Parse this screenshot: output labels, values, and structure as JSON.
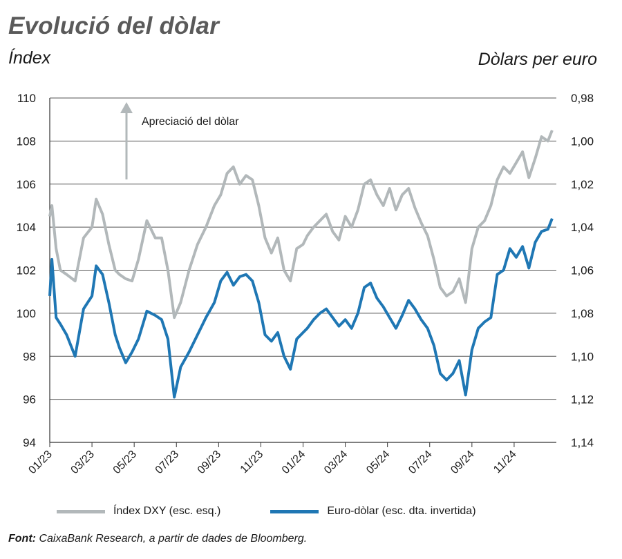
{
  "title": "Evolució del dòlar",
  "left_axis_label": "Índex",
  "right_axis_label": "Dòlars per euro",
  "annotation": "Apreciació del dòlar",
  "source_label": "Font:",
  "source_text": "CaixaBank Research, a partir de dades de Bloomberg.",
  "colors": {
    "dxy": "#b2b8ba",
    "eurusd": "#1f77b4",
    "grid": "#555555"
  },
  "chart_data": {
    "type": "line",
    "x_ticks": [
      "01/23",
      "03/23",
      "05/23",
      "07/23",
      "09/23",
      "11/23",
      "01/24",
      "03/24",
      "05/24",
      "07/24",
      "09/24",
      "11/24"
    ],
    "ylim_left": [
      94,
      110
    ],
    "left_ticks": [
      "94",
      "96",
      "98",
      "100",
      "102",
      "104",
      "106",
      "108",
      "110"
    ],
    "ylim_right": [
      0.98,
      1.14
    ],
    "right_axis_inverted": true,
    "right_ticks": [
      "0,98",
      "1,00",
      "1,02",
      "1,04",
      "1,06",
      "1,08",
      "1,10",
      "1,12",
      "1,14"
    ],
    "x_range_months": [
      0,
      24
    ],
    "series": [
      {
        "name": "Índex DXY (esc. esq.)",
        "axis": "left",
        "x": [
          0,
          0.1,
          0.3,
          0.5,
          0.8,
          1.2,
          1.6,
          2.0,
          2.2,
          2.5,
          2.8,
          3.1,
          3.3,
          3.6,
          3.9,
          4.2,
          4.6,
          5.0,
          5.3,
          5.6,
          5.9,
          6.2,
          6.6,
          7.0,
          7.4,
          7.8,
          8.1,
          8.4,
          8.7,
          9.0,
          9.3,
          9.6,
          9.9,
          10.2,
          10.5,
          10.8,
          11.1,
          11.4,
          11.7,
          12.0,
          12.2,
          12.5,
          12.8,
          13.1,
          13.4,
          13.7,
          14.0,
          14.3,
          14.6,
          14.9,
          15.2,
          15.5,
          15.8,
          16.1,
          16.4,
          16.7,
          17.0,
          17.3,
          17.6,
          17.9,
          18.2,
          18.5,
          18.8,
          19.1,
          19.4,
          19.7,
          20.0,
          20.3,
          20.6,
          20.9,
          21.2,
          21.5,
          21.8,
          22.1,
          22.4,
          22.7,
          23.0,
          23.3,
          23.6,
          23.8
        ],
        "values": [
          104.5,
          105.0,
          103.0,
          102.0,
          101.8,
          101.5,
          103.5,
          104.0,
          105.3,
          104.6,
          103.2,
          102.0,
          101.8,
          101.6,
          101.5,
          102.5,
          104.3,
          103.5,
          103.5,
          102.0,
          99.8,
          100.5,
          102.0,
          103.2,
          104.0,
          105.0,
          105.5,
          106.5,
          106.8,
          106.0,
          106.4,
          106.2,
          105.0,
          103.5,
          102.8,
          103.5,
          102.0,
          101.5,
          103.0,
          103.2,
          103.6,
          104.0,
          104.3,
          104.6,
          103.8,
          103.4,
          104.5,
          104.0,
          104.8,
          106.0,
          106.2,
          105.5,
          105.0,
          105.8,
          104.8,
          105.5,
          105.8,
          104.9,
          104.2,
          103.6,
          102.5,
          101.2,
          100.8,
          101.0,
          101.6,
          100.5,
          103.0,
          104.0,
          104.3,
          105.0,
          106.2,
          106.8,
          106.5,
          107.0,
          107.5,
          106.3,
          107.2,
          108.2,
          108.0,
          108.5
        ]
      },
      {
        "name": "Euro-dòlar (esc. dta. invertida)",
        "axis": "right",
        "x": [
          0,
          0.1,
          0.3,
          0.5,
          0.8,
          1.2,
          1.6,
          2.0,
          2.2,
          2.5,
          2.8,
          3.1,
          3.3,
          3.6,
          3.9,
          4.2,
          4.6,
          5.0,
          5.3,
          5.6,
          5.9,
          6.2,
          6.6,
          7.0,
          7.4,
          7.8,
          8.1,
          8.4,
          8.7,
          9.0,
          9.3,
          9.6,
          9.9,
          10.2,
          10.5,
          10.8,
          11.1,
          11.4,
          11.7,
          12.0,
          12.2,
          12.5,
          12.8,
          13.1,
          13.4,
          13.7,
          14.0,
          14.3,
          14.6,
          14.9,
          15.2,
          15.5,
          15.8,
          16.1,
          16.4,
          16.7,
          17.0,
          17.3,
          17.6,
          17.9,
          18.2,
          18.5,
          18.8,
          19.1,
          19.4,
          19.7,
          20.0,
          20.3,
          20.6,
          20.9,
          21.2,
          21.5,
          21.8,
          22.1,
          22.4,
          22.7,
          23.0,
          23.3,
          23.6,
          23.8
        ],
        "values": [
          1.072,
          1.055,
          1.082,
          1.085,
          1.09,
          1.1,
          1.078,
          1.072,
          1.058,
          1.062,
          1.075,
          1.09,
          1.096,
          1.103,
          1.098,
          1.092,
          1.079,
          1.081,
          1.083,
          1.092,
          1.119,
          1.105,
          1.098,
          1.09,
          1.082,
          1.075,
          1.065,
          1.061,
          1.067,
          1.063,
          1.062,
          1.065,
          1.075,
          1.09,
          1.093,
          1.089,
          1.1,
          1.106,
          1.092,
          1.089,
          1.087,
          1.083,
          1.08,
          1.078,
          1.082,
          1.086,
          1.083,
          1.087,
          1.08,
          1.068,
          1.066,
          1.073,
          1.077,
          1.082,
          1.087,
          1.081,
          1.074,
          1.078,
          1.083,
          1.087,
          1.095,
          1.108,
          1.111,
          1.108,
          1.102,
          1.118,
          1.097,
          1.087,
          1.084,
          1.082,
          1.062,
          1.06,
          1.05,
          1.054,
          1.049,
          1.059,
          1.047,
          1.042,
          1.041,
          1.036
        ]
      }
    ]
  }
}
